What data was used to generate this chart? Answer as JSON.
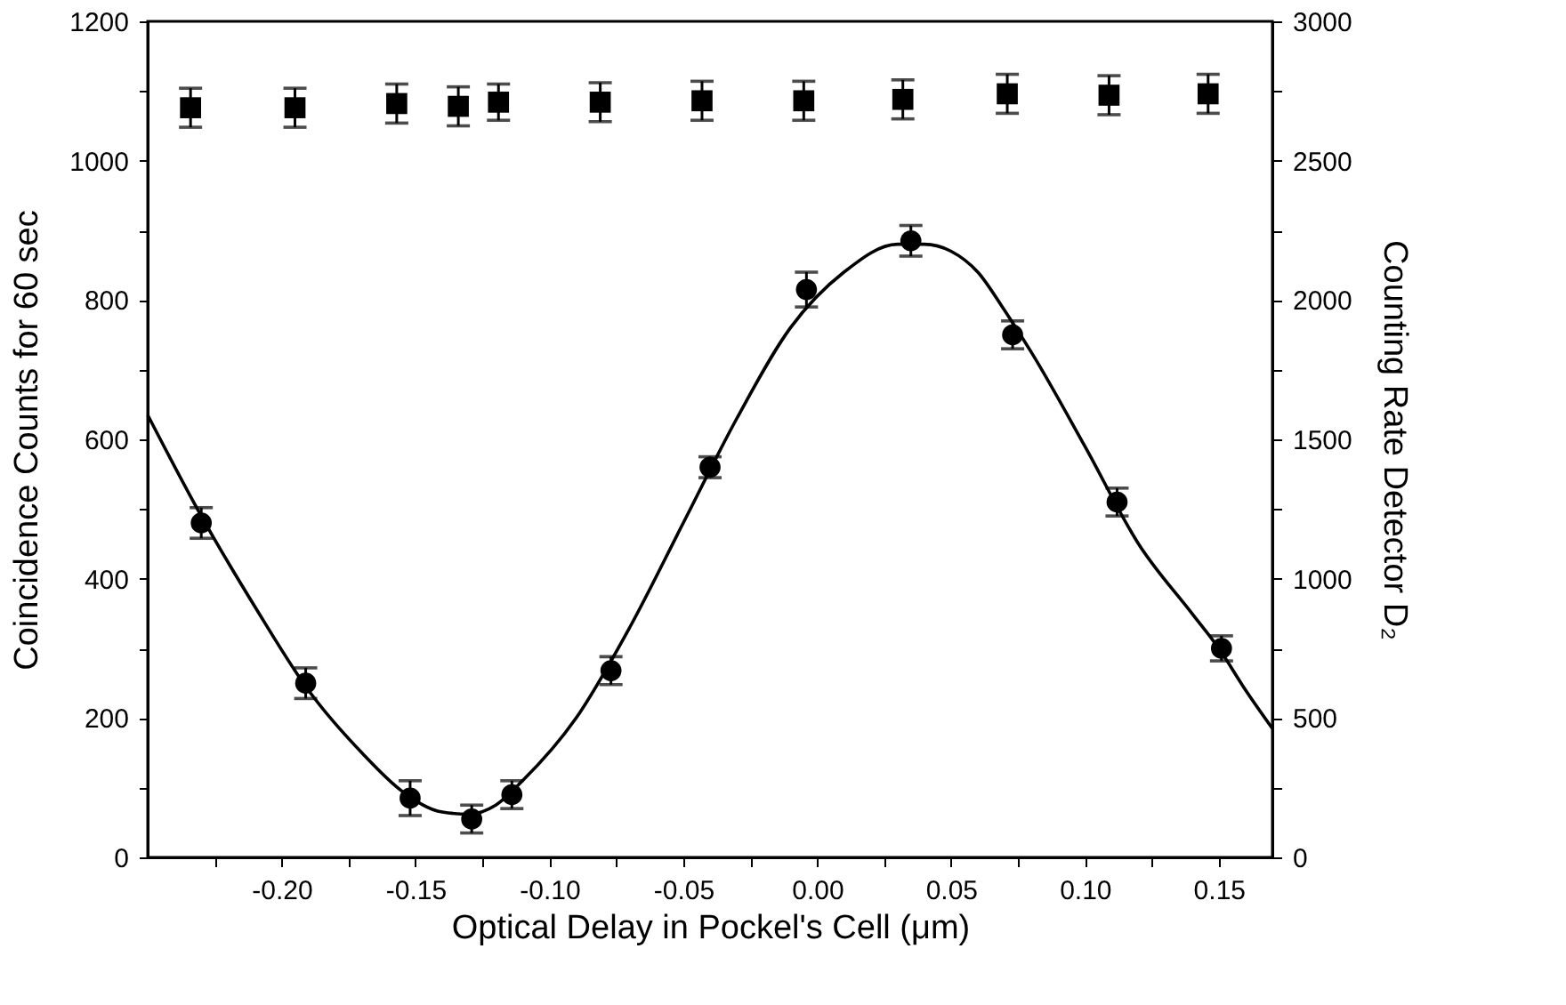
{
  "chart_data": {
    "type": "scatter",
    "xlabel": "Optical Delay in Pockel's Cell   (μm)",
    "ylabel": "Coincidence Counts for 60 sec",
    "y2label": "Counting Rate Detector D₂",
    "xlim": [
      -0.25,
      0.17
    ],
    "xticks": [
      {
        "value": -0.225,
        "label": null
      },
      {
        "value": -0.2,
        "label": "-0.20"
      },
      {
        "value": -0.175,
        "label": null
      },
      {
        "value": -0.15,
        "label": "-0.15"
      },
      {
        "value": -0.125,
        "label": null
      },
      {
        "value": -0.1,
        "label": "-0.10"
      },
      {
        "value": -0.075,
        "label": null
      },
      {
        "value": -0.05,
        "label": "-0.05"
      },
      {
        "value": -0.025,
        "label": null
      },
      {
        "value": 0,
        "label": "0.00"
      },
      {
        "value": 0.025,
        "label": null
      },
      {
        "value": 0.05,
        "label": "0.05"
      },
      {
        "value": 0.075,
        "label": null
      },
      {
        "value": 0.1,
        "label": "0.10"
      },
      {
        "value": 0.125,
        "label": null
      },
      {
        "value": 0.15,
        "label": "0.15"
      }
    ],
    "ylim": [
      0,
      1200
    ],
    "yticks": [
      0,
      {
        "value": 100,
        "label": null
      },
      200,
      {
        "value": 300,
        "label": null
      },
      400,
      {
        "value": 500,
        "label": null
      },
      600,
      {
        "value": 700,
        "label": null
      },
      800,
      {
        "value": 900,
        "label": null
      },
      1000,
      {
        "value": 1100,
        "label": null
      },
      1200
    ],
    "y2lim": [
      0,
      3000
    ],
    "y2ticks": [
      0,
      {
        "value": 250,
        "label": null
      },
      500,
      {
        "value": 750,
        "label": null
      },
      1000,
      {
        "value": 1250,
        "label": null
      },
      1500,
      {
        "value": 1750,
        "label": null
      },
      2000,
      {
        "value": 2250,
        "label": null
      },
      2500,
      {
        "value": 2750,
        "label": null
      },
      3000
    ],
    "grid": false,
    "series": [
      {
        "type": "line",
        "color": "#000000",
        "marker": "none",
        "line_style": "solid",
        "x": [
          -0.25,
          -0.23,
          -0.21,
          -0.19,
          -0.17,
          -0.155,
          -0.14,
          -0.13,
          -0.12,
          -0.11,
          -0.09,
          -0.07,
          -0.05,
          -0.03,
          -0.01,
          0.01,
          0.03,
          0.04,
          0.05,
          0.06,
          0.07,
          0.08,
          0.1,
          0.12,
          0.14,
          0.15,
          0.16,
          0.17
        ],
        "values": [
          635,
          490,
          360,
          240,
          150,
          95,
          65,
          62,
          75,
          110,
          200,
          330,
          480,
          630,
          760,
          840,
          880,
          880,
          870,
          840,
          785,
          725,
          590,
          450,
          350,
          300,
          240,
          185
        ]
      },
      {
        "color": "#000000",
        "marker": "circle",
        "x": [
          -0.23,
          -0.191,
          -0.152,
          -0.129,
          -0.114,
          -0.077,
          -0.04,
          -0.004,
          0.035,
          0.073,
          0.112,
          0.151
        ],
        "values": [
          480,
          250,
          85,
          55,
          90,
          268,
          560,
          815,
          885,
          750,
          510,
          300
        ],
        "errors": [
          22,
          22,
          25,
          20,
          20,
          20,
          15,
          25,
          22,
          20,
          20,
          18
        ]
      },
      {
        "color": "#000000",
        "marker": "square",
        "axis": "y2",
        "x": [
          -0.234,
          -0.195,
          -0.157,
          -0.134,
          -0.119,
          -0.081,
          -0.043,
          -0.005,
          0.032,
          0.071,
          0.109,
          0.146
        ],
        "values": [
          2690,
          2690,
          2705,
          2695,
          2710,
          2710,
          2715,
          2715,
          2720,
          2740,
          2735,
          2740
        ],
        "errors": [
          70,
          70,
          70,
          70,
          65,
          70,
          70,
          70,
          70,
          70,
          70,
          70
        ]
      }
    ]
  }
}
